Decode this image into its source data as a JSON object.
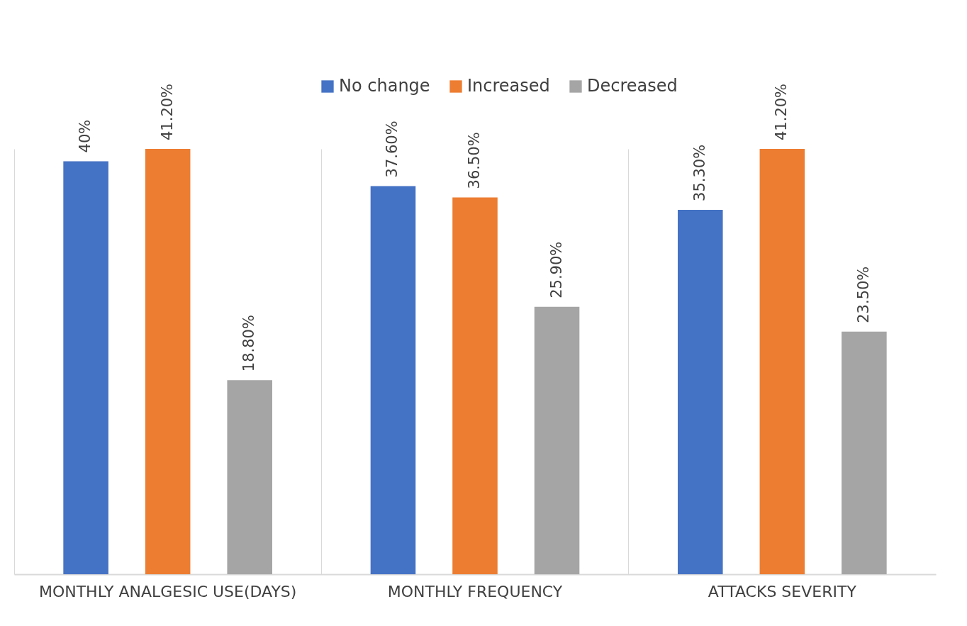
{
  "chart_data": {
    "type": "bar",
    "categories": [
      "MONTHLY ANALGESIC USE(DAYS)",
      "MONTHLY FREQUENCY",
      "ATTACKS SEVERITY"
    ],
    "series": [
      {
        "name": "No change",
        "color": "#4472c4",
        "values": [
          40,
          37.6,
          35.3
        ],
        "value_labels": [
          "40%",
          "37.60%",
          "35.30%"
        ]
      },
      {
        "name": "Increased",
        "color": "#ed7d31",
        "values": [
          41.2,
          36.5,
          41.2
        ],
        "value_labels": [
          "41.20%",
          "36.50%",
          "41.20%"
        ]
      },
      {
        "name": "Decreased",
        "color": "#a5a5a5",
        "values": [
          18.8,
          25.9,
          23.5
        ],
        "value_labels": [
          "18.80%",
          "25.90%",
          "23.50%"
        ]
      }
    ],
    "grid": "x",
    "legend": "top"
  }
}
